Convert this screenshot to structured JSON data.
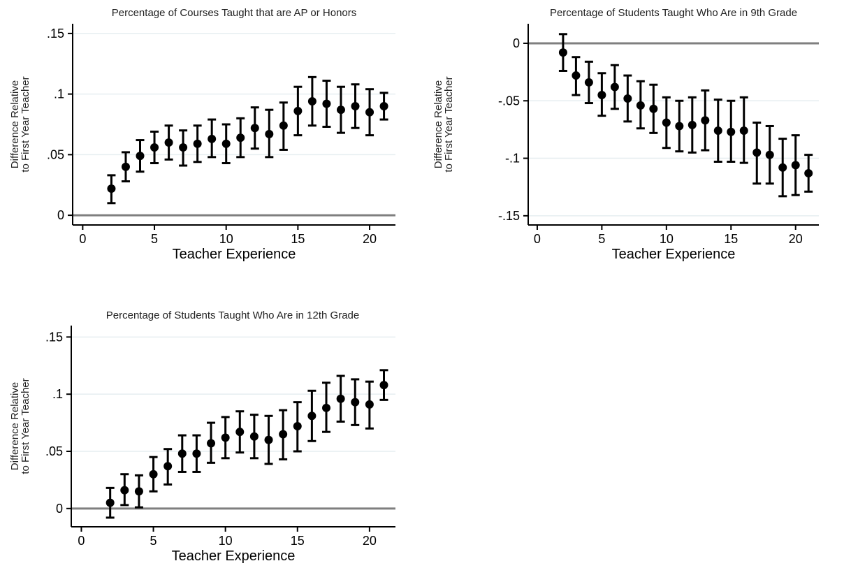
{
  "chart_data": [
    {
      "type": "scatter",
      "title": "Percentage of Courses Taught that are AP or Honors",
      "xlabel": "Teacher Experience",
      "ylabel": [
        "Difference Relative",
        "to First Year Teacher"
      ],
      "xlim": [
        -0.7,
        21.8
      ],
      "ylim": [
        -0.008,
        0.158
      ],
      "xticks": [
        0,
        5,
        10,
        15,
        20
      ],
      "xtick_labels": [
        "0",
        "5",
        "10",
        "15",
        "20"
      ],
      "yticks": [
        0,
        0.05,
        0.1,
        0.15
      ],
      "ytick_labels": [
        "0",
        ".05",
        ".1",
        ".15"
      ],
      "zero_line": true,
      "grid": "horizontal",
      "x": [
        2,
        3,
        4,
        5,
        6,
        7,
        8,
        9,
        10,
        11,
        12,
        13,
        14,
        15,
        16,
        17,
        18,
        19,
        20,
        21
      ],
      "y": [
        0.022,
        0.04,
        0.049,
        0.056,
        0.06,
        0.056,
        0.059,
        0.063,
        0.059,
        0.064,
        0.072,
        0.067,
        0.074,
        0.086,
        0.094,
        0.092,
        0.087,
        0.09,
        0.085,
        0.09
      ],
      "lower": [
        0.01,
        0.028,
        0.036,
        0.043,
        0.046,
        0.041,
        0.044,
        0.048,
        0.043,
        0.048,
        0.055,
        0.048,
        0.054,
        0.066,
        0.074,
        0.073,
        0.068,
        0.072,
        0.066,
        0.079
      ],
      "upper": [
        0.033,
        0.052,
        0.062,
        0.069,
        0.074,
        0.07,
        0.074,
        0.079,
        0.075,
        0.08,
        0.089,
        0.087,
        0.093,
        0.106,
        0.114,
        0.111,
        0.106,
        0.108,
        0.104,
        0.101
      ]
    },
    {
      "type": "scatter",
      "title": "Percentage of Students Taught Who Are in 9th Grade",
      "xlabel": "Teacher Experience",
      "ylabel": [
        "Difference Relative",
        "to First Year Teacher"
      ],
      "xlim": [
        -0.7,
        21.8
      ],
      "ylim": [
        -0.158,
        0.017
      ],
      "xticks": [
        0,
        5,
        10,
        15,
        20
      ],
      "xtick_labels": [
        "0",
        "5",
        "10",
        "15",
        "20"
      ],
      "yticks": [
        0,
        -0.05,
        -0.1,
        -0.15
      ],
      "ytick_labels": [
        "0",
        "-.05",
        "-.1",
        "-.15"
      ],
      "zero_line": true,
      "grid": "horizontal",
      "x": [
        2,
        3,
        4,
        5,
        6,
        7,
        8,
        9,
        10,
        11,
        12,
        13,
        14,
        15,
        16,
        17,
        18,
        19,
        20,
        21
      ],
      "y": [
        -0.008,
        -0.028,
        -0.034,
        -0.045,
        -0.038,
        -0.048,
        -0.054,
        -0.057,
        -0.069,
        -0.072,
        -0.071,
        -0.067,
        -0.076,
        -0.077,
        -0.076,
        -0.095,
        -0.097,
        -0.108,
        -0.106,
        -0.113
      ],
      "lower": [
        -0.024,
        -0.045,
        -0.052,
        -0.063,
        -0.057,
        -0.068,
        -0.074,
        -0.078,
        -0.091,
        -0.094,
        -0.095,
        -0.093,
        -0.103,
        -0.103,
        -0.104,
        -0.122,
        -0.122,
        -0.133,
        -0.132,
        -0.129
      ],
      "upper": [
        0.008,
        -0.012,
        -0.016,
        -0.026,
        -0.019,
        -0.028,
        -0.033,
        -0.036,
        -0.047,
        -0.05,
        -0.047,
        -0.041,
        -0.049,
        -0.05,
        -0.047,
        -0.069,
        -0.072,
        -0.083,
        -0.08,
        -0.097
      ]
    },
    {
      "type": "scatter",
      "title": "Percentage of Students Taught Who Are in 12th Grade",
      "xlabel": "Teacher Experience",
      "ylabel": [
        "Difference Relative",
        "to First Year Teacher"
      ],
      "xlim": [
        -0.7,
        21.8
      ],
      "ylim": [
        -0.016,
        0.16
      ],
      "xticks": [
        0,
        5,
        10,
        15,
        20
      ],
      "xtick_labels": [
        "0",
        "5",
        "10",
        "15",
        "20"
      ],
      "yticks": [
        0,
        0.05,
        0.1,
        0.15
      ],
      "ytick_labels": [
        "0",
        ".05",
        ".1",
        ".15"
      ],
      "zero_line": true,
      "grid": "horizontal",
      "x": [
        2,
        3,
        4,
        5,
        6,
        7,
        8,
        9,
        10,
        11,
        12,
        13,
        14,
        15,
        16,
        17,
        18,
        19,
        20,
        21
      ],
      "y": [
        0.005,
        0.016,
        0.015,
        0.03,
        0.037,
        0.048,
        0.048,
        0.057,
        0.062,
        0.067,
        0.063,
        0.06,
        0.065,
        0.072,
        0.081,
        0.088,
        0.096,
        0.093,
        0.091,
        0.108
      ],
      "lower": [
        -0.008,
        0.003,
        0.001,
        0.015,
        0.021,
        0.032,
        0.032,
        0.04,
        0.044,
        0.049,
        0.044,
        0.039,
        0.043,
        0.05,
        0.059,
        0.067,
        0.076,
        0.073,
        0.07,
        0.095
      ],
      "upper": [
        0.018,
        0.03,
        0.029,
        0.045,
        0.052,
        0.064,
        0.064,
        0.075,
        0.08,
        0.085,
        0.082,
        0.081,
        0.086,
        0.093,
        0.103,
        0.11,
        0.116,
        0.113,
        0.111,
        0.121
      ]
    }
  ]
}
